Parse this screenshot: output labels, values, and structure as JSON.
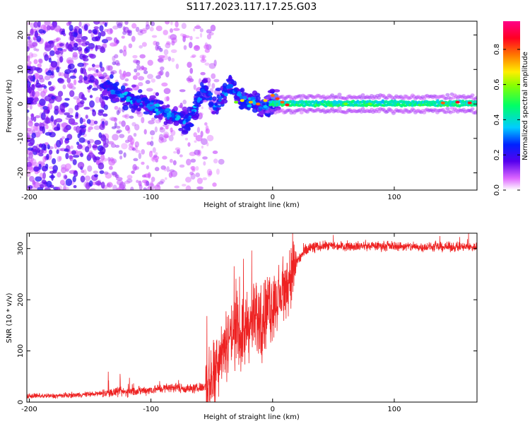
{
  "title": "S117.2023.117.17.25.G03",
  "colors": {
    "snr_line": "#ee2222",
    "axis": "#000000",
    "background": "#ffffff"
  },
  "chart_data": [
    {
      "type": "heatmap",
      "xlabel": "Height of straight line (km)",
      "ylabel": "Frequency (Hz)",
      "xlim": [
        -202,
        168
      ],
      "ylim": [
        -25,
        24
      ],
      "xticks": [
        -200,
        -100,
        0,
        100
      ],
      "xtick_labels": [
        "-200",
        "-100",
        "0",
        "100"
      ],
      "yticks": [
        -20,
        -10,
        0,
        10,
        20
      ],
      "ytick_labels": [
        "-20",
        "-10",
        "0",
        "10",
        "20"
      ],
      "colorbar": {
        "label": "Normalized spectral amplitude",
        "range": [
          0,
          0.96
        ],
        "ticks": [
          0,
          0.2,
          0.4,
          0.6,
          0.8
        ],
        "tick_labels": [
          "0.0",
          "0.2",
          "0.4",
          "0.6",
          "0.8"
        ],
        "colormap": "white-magenta-purple-blue-cyan-green-yellow-red-pink"
      },
      "features": {
        "noise_region_km": [
          -202,
          -140
        ],
        "scattered_track_km": [
          -140,
          -30
        ],
        "track_frequency_at_-140km_Hz": 5,
        "track_frequency_at_-70km_Hz": -5,
        "steady_line_start_km": 0,
        "steady_line_frequency_Hz": 0,
        "steady_line_amplitude": 0.45
      }
    },
    {
      "type": "line",
      "xlabel": "Height of straight line (km)",
      "ylabel": "SNR (10 * v/v)",
      "xlim": [
        -202,
        168
      ],
      "ylim": [
        0,
        330
      ],
      "xticks": [
        -200,
        -100,
        0,
        100
      ],
      "xtick_labels": [
        "-200",
        "-100",
        "0",
        "100"
      ],
      "yticks": [
        0,
        100,
        200,
        300
      ],
      "ytick_labels": [
        "0",
        "100",
        "200",
        "300"
      ],
      "series": [
        {
          "name": "SNR",
          "color": "#ee2222",
          "x": [
            -202,
            -180,
            -160,
            -140,
            -120,
            -100,
            -90,
            -80,
            -70,
            -60,
            -52,
            -45,
            -40,
            -35,
            -30,
            -25,
            -20,
            -15,
            -10,
            -5,
            0,
            5,
            10,
            15,
            20,
            25,
            30,
            40,
            60,
            80,
            100,
            120,
            140,
            168
          ],
          "y": [
            12,
            12,
            14,
            17,
            20,
            24,
            27,
            29,
            26,
            27,
            35,
            90,
            110,
            130,
            140,
            130,
            150,
            160,
            155,
            175,
            190,
            200,
            220,
            250,
            275,
            290,
            300,
            305,
            305,
            305,
            305,
            303,
            303,
            303
          ]
        }
      ]
    }
  ]
}
